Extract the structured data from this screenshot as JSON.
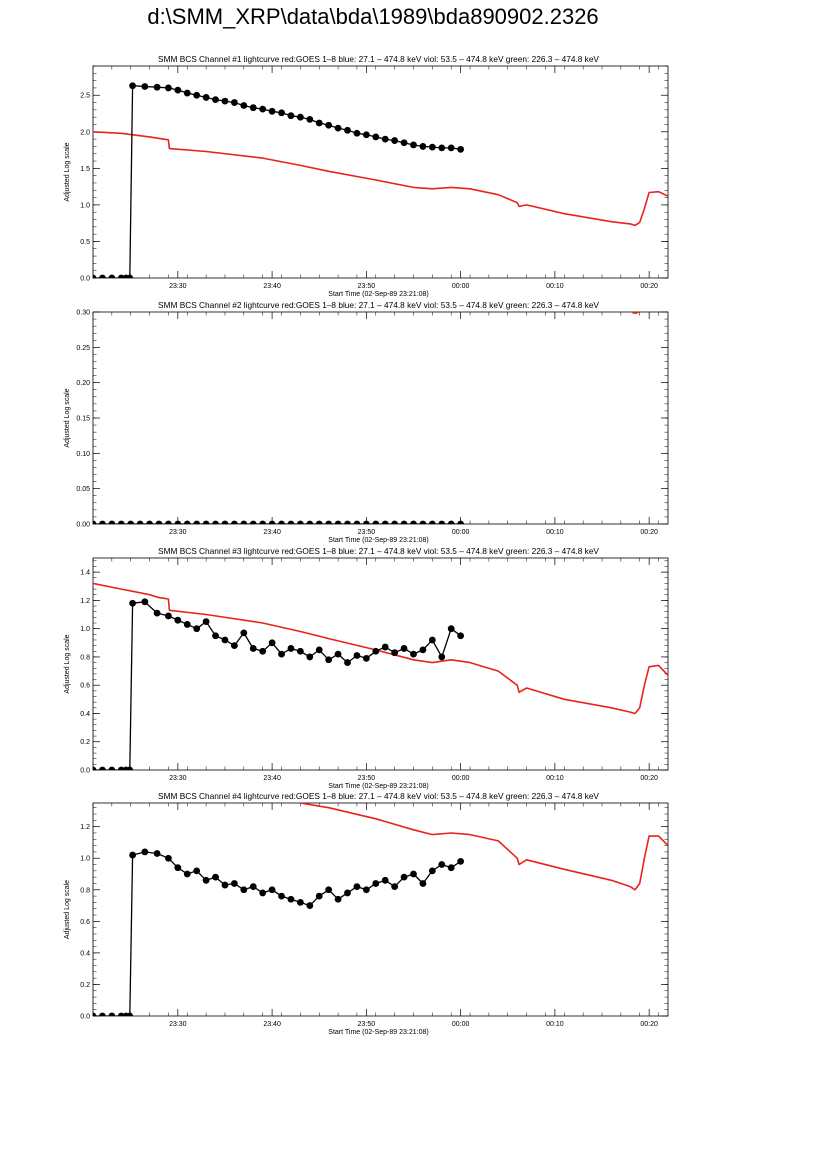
{
  "page": {
    "title": "d:\\SMM_XRP\\data\\bda\\1989\\bda890902.2326"
  },
  "colors": {
    "goes": "#e8231b",
    "bcs": "#000000",
    "axes": "#000000"
  },
  "chart_data": [
    {
      "type": "line",
      "title": "SMM BCS Channel #1 lightcurve  red:GOES 1–8  blue: 27.1 – 474.8 keV  viol: 53.5 – 474.8 keV  green: 226.3 – 474.8 keV",
      "xlabel": "Start Time (02-Sep-89 23:21:08)",
      "ylabel": "Adjusted Log scale",
      "xlim": [
        0,
        61
      ],
      "ylim": [
        0,
        2.9
      ],
      "xticks": [
        {
          "pos": 9,
          "label": "23:30"
        },
        {
          "pos": 19,
          "label": "23:40"
        },
        {
          "pos": 29,
          "label": "23:50"
        },
        {
          "pos": 39,
          "label": "00:00"
        },
        {
          "pos": 49,
          "label": "00:10"
        },
        {
          "pos": 59,
          "label": "00:20"
        }
      ],
      "yticks": [
        {
          "v": 0,
          "label": "0.0"
        },
        {
          "v": 0.5,
          "label": "0.5"
        },
        {
          "v": 1.0,
          "label": "1.0"
        },
        {
          "v": 1.5,
          "label": "1.5"
        },
        {
          "v": 2.0,
          "label": "2.0"
        },
        {
          "v": 2.5,
          "label": "2.5"
        }
      ],
      "series": [
        {
          "role": "goes",
          "x": [
            0,
            3,
            6,
            7,
            8,
            8.1,
            12,
            18,
            22,
            25,
            30,
            34,
            36,
            38,
            40,
            43,
            45,
            45.2,
            46,
            50,
            55,
            57,
            57.5,
            58,
            58.5,
            59,
            60,
            61
          ],
          "y": [
            2.0,
            1.98,
            1.93,
            1.91,
            1.89,
            1.77,
            1.73,
            1.64,
            1.54,
            1.46,
            1.34,
            1.24,
            1.22,
            1.24,
            1.22,
            1.14,
            1.03,
            0.98,
            1.0,
            0.88,
            0.77,
            0.74,
            0.72,
            0.76,
            0.95,
            1.17,
            1.18,
            1.12
          ]
        },
        {
          "role": "bcs",
          "x": [
            0,
            1,
            2,
            3,
            3.5,
            3.9,
            4.2,
            5.5,
            6.8,
            8,
            9,
            10,
            11,
            12,
            13,
            14,
            15,
            16,
            17,
            18,
            19,
            20,
            21,
            22,
            23,
            24,
            25,
            26,
            27,
            28,
            29,
            30,
            31,
            32,
            33,
            34,
            35,
            36,
            37,
            38,
            39
          ],
          "y": [
            0,
            0,
            0,
            0,
            0,
            0,
            2.63,
            2.62,
            2.61,
            2.6,
            2.57,
            2.53,
            2.5,
            2.47,
            2.44,
            2.42,
            2.4,
            2.36,
            2.33,
            2.31,
            2.28,
            2.26,
            2.22,
            2.2,
            2.17,
            2.12,
            2.09,
            2.05,
            2.02,
            1.98,
            1.96,
            1.93,
            1.9,
            1.88,
            1.85,
            1.82,
            1.8,
            1.79,
            1.78,
            1.78,
            1.76
          ]
        }
      ]
    },
    {
      "type": "line",
      "title": "SMM BCS Channel #2 lightcurve  red:GOES 1–8  blue: 27.1 – 474.8 keV  viol: 53.5 – 474.8 keV  green: 226.3 – 474.8 keV",
      "xlabel": "Start Time (02-Sep-89 23:21:08)",
      "ylabel": "Adjusted Log scale",
      "xlim": [
        0,
        61
      ],
      "ylim": [
        0,
        0.3
      ],
      "xticks": [
        {
          "pos": 9,
          "label": "23:30"
        },
        {
          "pos": 19,
          "label": "23:40"
        },
        {
          "pos": 29,
          "label": "23:50"
        },
        {
          "pos": 39,
          "label": "00:00"
        },
        {
          "pos": 49,
          "label": "00:10"
        },
        {
          "pos": 59,
          "label": "00:20"
        }
      ],
      "yticks": [
        {
          "v": 0,
          "label": "0.00"
        },
        {
          "v": 0.05,
          "label": "0.05"
        },
        {
          "v": 0.1,
          "label": "0.10"
        },
        {
          "v": 0.15,
          "label": "0.15"
        },
        {
          "v": 0.2,
          "label": "0.20"
        },
        {
          "v": 0.25,
          "label": "0.25"
        },
        {
          "v": 0.3,
          "label": "0.30"
        }
      ],
      "series": [
        {
          "role": "goes",
          "x": [
            57.2,
            57.6,
            58.0
          ],
          "y": [
            0.299,
            0.2985,
            0.3005
          ]
        },
        {
          "role": "bcs",
          "x": [
            0,
            1,
            2,
            3,
            4,
            5,
            6,
            7,
            8,
            9,
            10,
            11,
            12,
            13,
            14,
            15,
            16,
            17,
            18,
            19,
            20,
            21,
            22,
            23,
            24,
            25,
            26,
            27,
            28,
            29,
            30,
            31,
            32,
            33,
            34,
            35,
            36,
            37,
            38,
            39
          ],
          "y": [
            0,
            0,
            0,
            0,
            0,
            0,
            0,
            0,
            0,
            0,
            0,
            0,
            0,
            0,
            0,
            0,
            0,
            0,
            0,
            0,
            0,
            0,
            0,
            0,
            0,
            0,
            0,
            0,
            0,
            0,
            0,
            0,
            0,
            0,
            0,
            0,
            0,
            0,
            0,
            0
          ]
        }
      ]
    },
    {
      "type": "line",
      "title": "SMM BCS Channel #3 lightcurve  red:GOES 1–8  blue: 27.1 – 474.8 keV  viol: 53.5 – 474.8 keV  green: 226.3 – 474.8 keV",
      "xlabel": "Start Time (02-Sep-89 23:21:08)",
      "ylabel": "Adjusted Log scale",
      "xlim": [
        0,
        61
      ],
      "ylim": [
        0,
        1.5
      ],
      "xticks": [
        {
          "pos": 9,
          "label": "23:30"
        },
        {
          "pos": 19,
          "label": "23:40"
        },
        {
          "pos": 29,
          "label": "23:50"
        },
        {
          "pos": 39,
          "label": "00:00"
        },
        {
          "pos": 49,
          "label": "00:10"
        },
        {
          "pos": 59,
          "label": "00:20"
        }
      ],
      "yticks": [
        {
          "v": 0,
          "label": "0.0"
        },
        {
          "v": 0.2,
          "label": "0.2"
        },
        {
          "v": 0.4,
          "label": "0.4"
        },
        {
          "v": 0.6,
          "label": "0.6"
        },
        {
          "v": 0.8,
          "label": "0.8"
        },
        {
          "v": 1.0,
          "label": "1.0"
        },
        {
          "v": 1.2,
          "label": "1.2"
        },
        {
          "v": 1.4,
          "label": "1.4"
        }
      ],
      "series": [
        {
          "role": "goes",
          "x": [
            0,
            3,
            6,
            7,
            8,
            8.1,
            12,
            18,
            22,
            25,
            30,
            34,
            36,
            38,
            40,
            43,
            45,
            45.2,
            46,
            50,
            55,
            57,
            57.5,
            58,
            58.5,
            59,
            60,
            61
          ],
          "y": [
            1.32,
            1.28,
            1.24,
            1.22,
            1.21,
            1.13,
            1.1,
            1.04,
            0.98,
            0.93,
            0.85,
            0.78,
            0.76,
            0.78,
            0.76,
            0.7,
            0.6,
            0.55,
            0.58,
            0.5,
            0.44,
            0.41,
            0.4,
            0.44,
            0.6,
            0.73,
            0.74,
            0.67
          ]
        },
        {
          "role": "bcs",
          "x": [
            0,
            1,
            2,
            3,
            3.5,
            3.9,
            4.2,
            5.5,
            6.8,
            8,
            9,
            10,
            11,
            12,
            13,
            14,
            15,
            16,
            17,
            18,
            19,
            20,
            21,
            22,
            23,
            24,
            25,
            26,
            27,
            28,
            29,
            30,
            31,
            32,
            33,
            34,
            35,
            36,
            37,
            38,
            39
          ],
          "y": [
            0,
            0,
            0,
            0,
            0,
            0,
            1.18,
            1.19,
            1.11,
            1.09,
            1.06,
            1.03,
            1.0,
            1.05,
            0.95,
            0.92,
            0.88,
            0.97,
            0.86,
            0.84,
            0.9,
            0.82,
            0.86,
            0.84,
            0.8,
            0.85,
            0.78,
            0.82,
            0.76,
            0.81,
            0.79,
            0.84,
            0.87,
            0.83,
            0.86,
            0.82,
            0.85,
            0.92,
            0.8,
            1.0,
            0.95
          ]
        }
      ]
    },
    {
      "type": "line",
      "title": "SMM BCS Channel #4 lightcurve  red:GOES 1–8  blue: 27.1 – 474.8 keV  viol: 53.5 – 474.8 keV  green: 226.3 – 474.8 keV",
      "xlabel": "Start Time (02-Sep-89 23:21:08)",
      "ylabel": "Adjusted Log scale",
      "xlim": [
        0,
        61
      ],
      "ylim": [
        0,
        1.35
      ],
      "xticks": [
        {
          "pos": 9,
          "label": "23:30"
        },
        {
          "pos": 19,
          "label": "23:40"
        },
        {
          "pos": 29,
          "label": "23:50"
        },
        {
          "pos": 39,
          "label": "00:00"
        },
        {
          "pos": 49,
          "label": "00:10"
        },
        {
          "pos": 59,
          "label": "00:20"
        }
      ],
      "yticks": [
        {
          "v": 0,
          "label": "0.0"
        },
        {
          "v": 0.2,
          "label": "0.2"
        },
        {
          "v": 0.4,
          "label": "0.4"
        },
        {
          "v": 0.6,
          "label": "0.6"
        },
        {
          "v": 0.8,
          "label": "0.8"
        },
        {
          "v": 1.0,
          "label": "1.0"
        },
        {
          "v": 1.2,
          "label": "1.2"
        }
      ],
      "series": [
        {
          "role": "goes",
          "x": [
            22,
            25,
            30,
            34,
            36,
            38,
            40,
            43,
            45,
            45.2,
            46,
            50,
            55,
            57,
            57.5,
            58,
            58.5,
            59,
            60,
            61
          ],
          "y": [
            1.35,
            1.32,
            1.25,
            1.18,
            1.15,
            1.16,
            1.15,
            1.11,
            1.0,
            0.96,
            0.99,
            0.93,
            0.86,
            0.82,
            0.8,
            0.84,
            1.0,
            1.14,
            1.14,
            1.08
          ]
        },
        {
          "role": "bcs",
          "x": [
            0,
            1,
            2,
            3,
            3.5,
            3.9,
            4.2,
            5.5,
            6.8,
            8,
            9,
            10,
            11,
            12,
            13,
            14,
            15,
            16,
            17,
            18,
            19,
            20,
            21,
            22,
            23,
            24,
            25,
            26,
            27,
            28,
            29,
            30,
            31,
            32,
            33,
            34,
            35,
            36,
            37,
            38,
            39
          ],
          "y": [
            0,
            0,
            0,
            0,
            0,
            0,
            1.02,
            1.04,
            1.03,
            1.0,
            0.94,
            0.9,
            0.92,
            0.86,
            0.88,
            0.83,
            0.84,
            0.8,
            0.82,
            0.78,
            0.8,
            0.76,
            0.74,
            0.72,
            0.7,
            0.76,
            0.8,
            0.74,
            0.78,
            0.82,
            0.8,
            0.84,
            0.86,
            0.82,
            0.88,
            0.9,
            0.84,
            0.92,
            0.96,
            0.94,
            0.98
          ]
        }
      ]
    }
  ]
}
